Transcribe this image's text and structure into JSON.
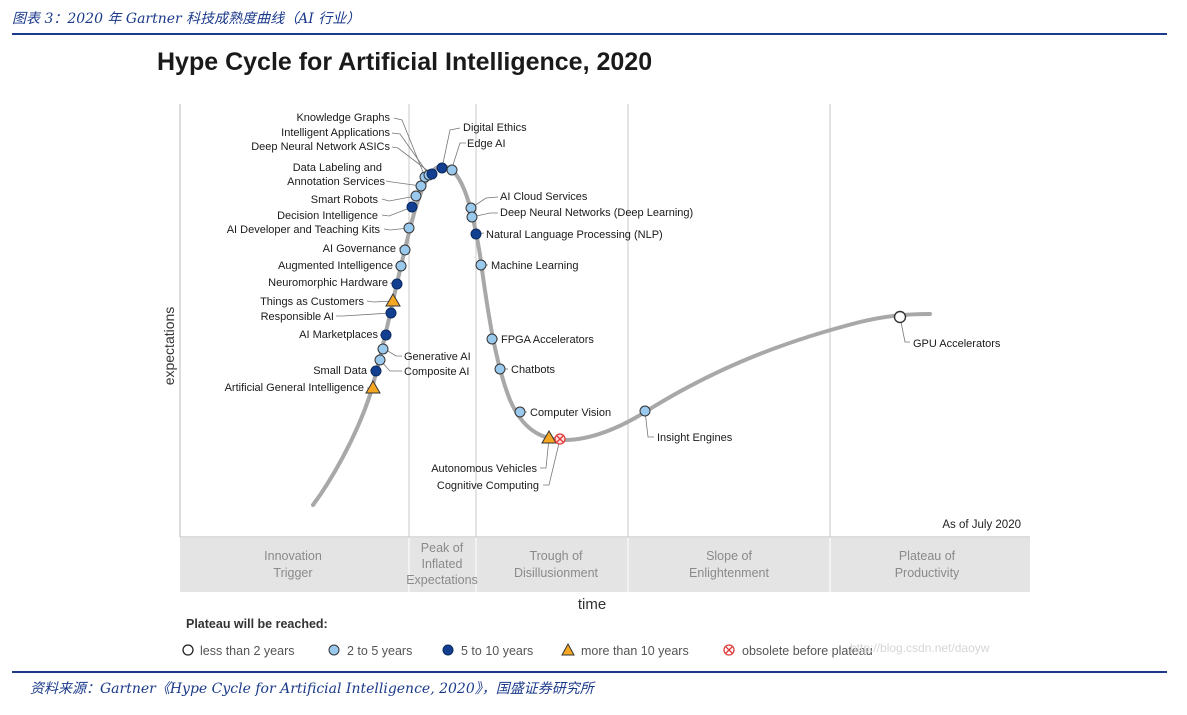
{
  "figure_caption": "图表 3：2020 年 Gartner 科技成熟度曲线（AI 行业）",
  "source_note": "资料来源：Gartner《Hype Cycle for Artificial Intelligence, 2020》，国盛证券研究所",
  "chart": {
    "title": "Hype Cycle for Artificial Intelligence, 2020",
    "ylabel": "expectations",
    "xlabel": "time",
    "as_of": "As of July 2020",
    "watermark": "http://blog.csdn.net/daoyw",
    "phases": [
      {
        "id": "innovation-trigger",
        "line1": "Innovation",
        "line2": "Trigger"
      },
      {
        "id": "peak",
        "line1": "Peak of",
        "line2": "Inflated",
        "line3": "Expectations"
      },
      {
        "id": "trough",
        "line1": "Trough of",
        "line2": "Disillusionment"
      },
      {
        "id": "slope",
        "line1": "Slope of",
        "line2": "Enlightenment"
      },
      {
        "id": "plateau",
        "line1": "Plateau of",
        "line2": "Productivity"
      }
    ],
    "legend": {
      "title": "Plateau will be reached:",
      "items": [
        {
          "id": "lt2",
          "label": "less than 2 years",
          "color": "#ffffff"
        },
        {
          "id": "2to5",
          "label": "2 to 5 years",
          "color": "#9ac9ee"
        },
        {
          "id": "5to10",
          "label": "5 to 10 years",
          "color": "#123f8f"
        },
        {
          "id": "gt10",
          "label": "more than 10 years",
          "color": "#f5a623"
        },
        {
          "id": "obsolete",
          "label": "obsolete before plateau",
          "color": "#e23b3b"
        }
      ]
    },
    "technologies": [
      {
        "label": "Knowledge Graphs",
        "cat": "2to5"
      },
      {
        "label": "Intelligent Applications",
        "cat": "2to5"
      },
      {
        "label": "Deep Neural Network ASICs",
        "cat": "5to10"
      },
      {
        "label": "Data Labeling and",
        "label2": "Annotation Services",
        "cat": "2to5"
      },
      {
        "label": "Smart Robots",
        "cat": "2to5"
      },
      {
        "label": "Decision Intelligence",
        "cat": "5to10"
      },
      {
        "label": "AI Developer and Teaching Kits",
        "cat": "2to5"
      },
      {
        "label": "AI Governance",
        "cat": "2to5"
      },
      {
        "label": "Augmented Intelligence",
        "cat": "2to5"
      },
      {
        "label": "Neuromorphic Hardware",
        "cat": "5to10"
      },
      {
        "label": "Things as Customers",
        "cat": "gt10"
      },
      {
        "label": "Responsible AI",
        "cat": "5to10"
      },
      {
        "label": "AI Marketplaces",
        "cat": "5to10"
      },
      {
        "label": "Generative AI",
        "cat": "2to5"
      },
      {
        "label": "Small Data",
        "cat": "5to10"
      },
      {
        "label": "Composite AI",
        "cat": "2to5"
      },
      {
        "label": "Artificial General Intelligence",
        "cat": "gt10"
      },
      {
        "label": "Digital Ethics",
        "cat": "5to10"
      },
      {
        "label": "Edge AI",
        "cat": "2to5"
      },
      {
        "label": "AI Cloud Services",
        "cat": "2to5"
      },
      {
        "label": "Deep Neural Networks (Deep Learning)",
        "cat": "2to5"
      },
      {
        "label": "Natural Language Processing (NLP)",
        "cat": "5to10"
      },
      {
        "label": "Machine Learning",
        "cat": "2to5"
      },
      {
        "label": "FPGA Accelerators",
        "cat": "2to5"
      },
      {
        "label": "Chatbots",
        "cat": "2to5"
      },
      {
        "label": "Computer Vision",
        "cat": "2to5"
      },
      {
        "label": "Autonomous Vehicles",
        "cat": "gt10"
      },
      {
        "label": "Cognitive Computing",
        "cat": "obsolete"
      },
      {
        "label": "Insight Engines",
        "cat": "2to5"
      },
      {
        "label": "GPU Accelerators",
        "cat": "lt2"
      }
    ]
  }
}
